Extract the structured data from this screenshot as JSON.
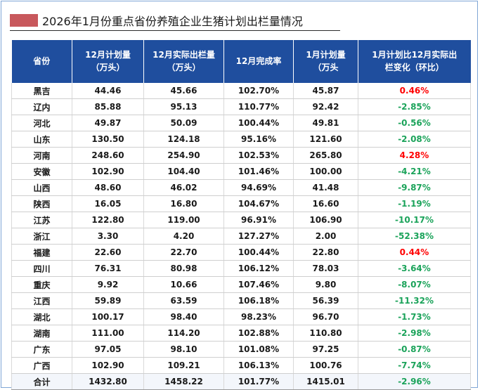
{
  "title": "2026年1月份重点省份养殖企业生猪计划出栏量情况",
  "colors": {
    "header_bg": "#1f4e9e",
    "title_marker": "#c8585c",
    "positive": "#ff0000",
    "negative": "#1ba35a"
  },
  "headers": {
    "province": "省份",
    "dec_plan_line1": "12月计划量",
    "dec_plan_line2": "（万头）",
    "dec_actual_line1": "12月实际出栏量",
    "dec_actual_line2": "（万头）",
    "dec_rate": "12月完成率",
    "jan_plan_line1": "1月计划量",
    "jan_plan_line2": "（万头",
    "change_line1": "1月计划比12月实际出",
    "change_line2": "栏变化（环比）"
  },
  "rows": [
    {
      "province": "黑吉",
      "dec_plan": "44.46",
      "dec_actual": "45.66",
      "rate": "102.70%",
      "jan_plan": "45.87",
      "change": "0.46%",
      "trend": "pos"
    },
    {
      "province": "辽内",
      "dec_plan": "85.88",
      "dec_actual": "95.13",
      "rate": "110.77%",
      "jan_plan": "92.42",
      "change": "-2.85%",
      "trend": "neg"
    },
    {
      "province": "河北",
      "dec_plan": "49.87",
      "dec_actual": "50.09",
      "rate": "100.44%",
      "jan_plan": "49.81",
      "change": "-0.56%",
      "trend": "neg"
    },
    {
      "province": "山东",
      "dec_plan": "130.50",
      "dec_actual": "124.18",
      "rate": "95.16%",
      "jan_plan": "121.60",
      "change": "-2.08%",
      "trend": "neg"
    },
    {
      "province": "河南",
      "dec_plan": "248.60",
      "dec_actual": "254.90",
      "rate": "102.53%",
      "jan_plan": "265.80",
      "change": "4.28%",
      "trend": "pos"
    },
    {
      "province": "安徽",
      "dec_plan": "102.90",
      "dec_actual": "104.40",
      "rate": "101.46%",
      "jan_plan": "100.00",
      "change": "-4.21%",
      "trend": "neg"
    },
    {
      "province": "山西",
      "dec_plan": "48.60",
      "dec_actual": "46.02",
      "rate": "94.69%",
      "jan_plan": "41.48",
      "change": "-9.87%",
      "trend": "neg"
    },
    {
      "province": "陕西",
      "dec_plan": "16.05",
      "dec_actual": "16.80",
      "rate": "104.67%",
      "jan_plan": "16.60",
      "change": "-1.19%",
      "trend": "neg"
    },
    {
      "province": "江苏",
      "dec_plan": "122.80",
      "dec_actual": "119.00",
      "rate": "96.91%",
      "jan_plan": "106.90",
      "change": "-10.17%",
      "trend": "neg"
    },
    {
      "province": "浙江",
      "dec_plan": "3.30",
      "dec_actual": "4.20",
      "rate": "127.27%",
      "jan_plan": "2.00",
      "change": "-52.38%",
      "trend": "neg"
    },
    {
      "province": "福建",
      "dec_plan": "22.60",
      "dec_actual": "22.70",
      "rate": "100.44%",
      "jan_plan": "22.80",
      "change": "0.44%",
      "trend": "pos"
    },
    {
      "province": "四川",
      "dec_plan": "76.31",
      "dec_actual": "80.98",
      "rate": "106.12%",
      "jan_plan": "78.03",
      "change": "-3.64%",
      "trend": "neg"
    },
    {
      "province": "重庆",
      "dec_plan": "9.92",
      "dec_actual": "10.66",
      "rate": "107.46%",
      "jan_plan": "9.80",
      "change": "-8.07%",
      "trend": "neg"
    },
    {
      "province": "江西",
      "dec_plan": "59.89",
      "dec_actual": "63.59",
      "rate": "106.18%",
      "jan_plan": "56.39",
      "change": "-11.32%",
      "trend": "neg"
    },
    {
      "province": "湖北",
      "dec_plan": "100.17",
      "dec_actual": "98.40",
      "rate": "98.23%",
      "jan_plan": "96.70",
      "change": "-1.73%",
      "trend": "neg"
    },
    {
      "province": "湖南",
      "dec_plan": "111.00",
      "dec_actual": "114.20",
      "rate": "102.88%",
      "jan_plan": "110.80",
      "change": "-2.98%",
      "trend": "neg"
    },
    {
      "province": "广东",
      "dec_plan": "97.05",
      "dec_actual": "98.10",
      "rate": "101.08%",
      "jan_plan": "97.25",
      "change": "-0.87%",
      "trend": "neg"
    },
    {
      "province": "广西",
      "dec_plan": "102.90",
      "dec_actual": "109.21",
      "rate": "106.13%",
      "jan_plan": "100.76",
      "change": "-7.74%",
      "trend": "neg"
    },
    {
      "province": "合计",
      "dec_plan": "1432.80",
      "dec_actual": "1458.22",
      "rate": "101.77%",
      "jan_plan": "1415.01",
      "change": "-2.96%",
      "trend": "neg"
    }
  ]
}
